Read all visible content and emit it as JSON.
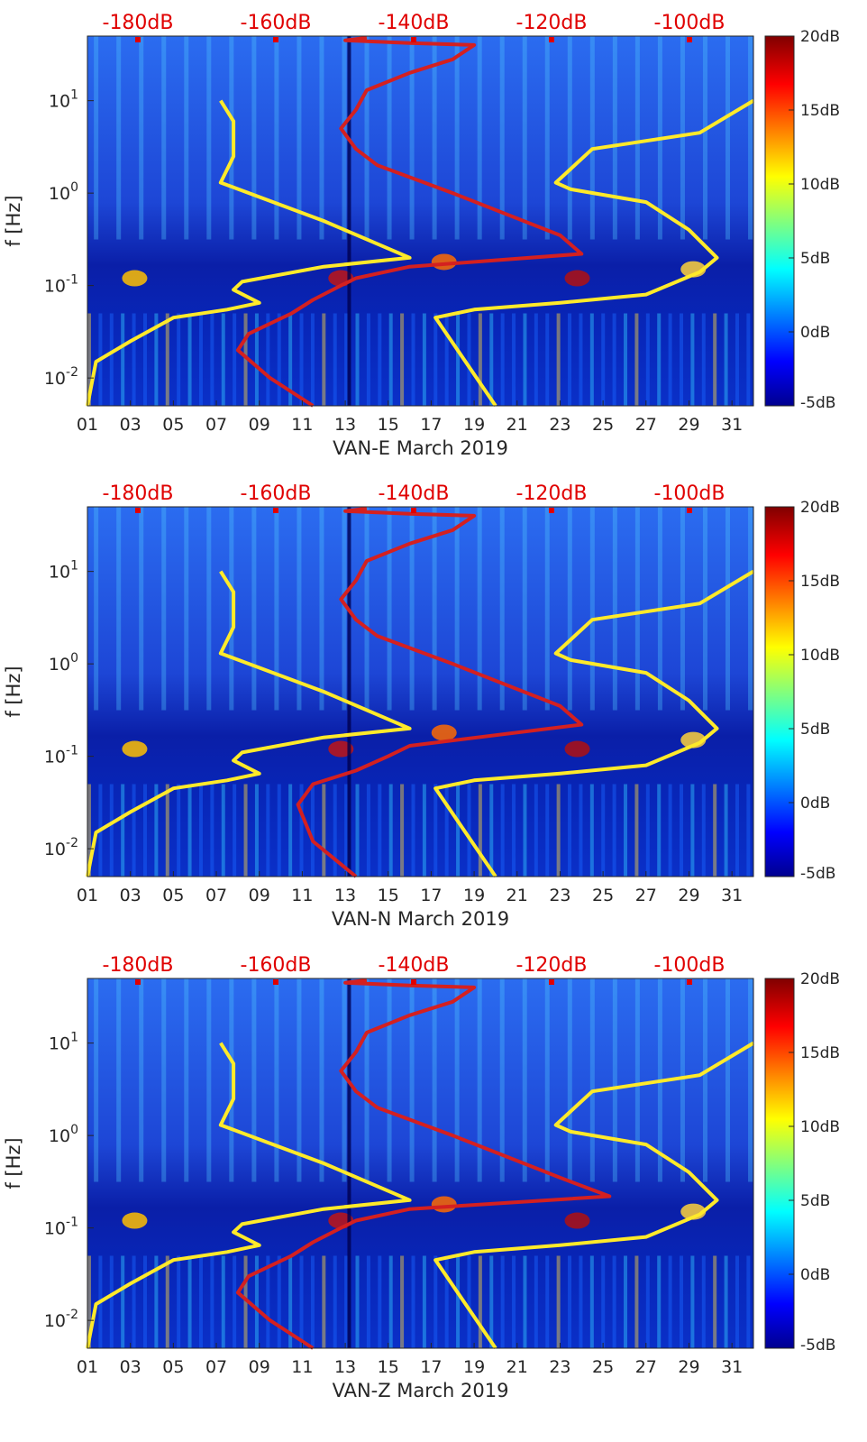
{
  "chart_data": [
    {
      "type": "heatmap",
      "title": "",
      "xlabel": "VAN-E March 2019",
      "ylabel": "f [Hz]",
      "x_ticks": [
        "01",
        "03",
        "05",
        "07",
        "09",
        "11",
        "13",
        "15",
        "17",
        "19",
        "21",
        "23",
        "25",
        "27",
        "29",
        "31"
      ],
      "y_ticks": [
        "10^-2",
        "10^-1",
        "10^0",
        "10^1"
      ],
      "xlim": [
        1,
        32
      ],
      "ylim_hz": [
        0.005,
        50
      ],
      "top_ticks": [
        "-180dB",
        "-160dB",
        "-140dB",
        "-120dB",
        "-100dB"
      ],
      "colorbar": {
        "ticks": [
          "20dB",
          "15dB",
          "10dB",
          "5dB",
          "0dB",
          "-5dB"
        ],
        "range_db": [
          -5,
          20
        ]
      },
      "series": [
        {
          "name": "yellow-curve-left",
          "color": "#ffea2a",
          "day": [
            1.0,
            1.4,
            3.0,
            5.0,
            7.5,
            9.0,
            7.8,
            8.2,
            12.0,
            16.0,
            12.0,
            7.2,
            7.8,
            7.8,
            7.2
          ],
          "hz": [
            0.005,
            0.015,
            0.025,
            0.045,
            0.055,
            0.065,
            0.09,
            0.11,
            0.16,
            0.2,
            0.5,
            1.3,
            2.5,
            6.0,
            10.0
          ]
        },
        {
          "name": "yellow-curve-right",
          "color": "#ffea2a",
          "day": [
            20.0,
            17.2,
            19.0,
            23.0,
            27.0,
            29.5,
            30.3,
            29.0,
            27.0,
            23.5,
            22.8,
            24.5,
            29.5,
            32.0
          ],
          "hz": [
            0.005,
            0.045,
            0.055,
            0.065,
            0.08,
            0.14,
            0.2,
            0.4,
            0.8,
            1.1,
            1.3,
            3.0,
            4.5,
            10.0
          ]
        },
        {
          "name": "red-noise-model",
          "color": "#d42020",
          "day": [
            11.5,
            9.5,
            8.0,
            8.5,
            10.5,
            11.5,
            12.8,
            13.5,
            16.0,
            24.0,
            23.0,
            18.0,
            14.5,
            13.5,
            12.8,
            13.5,
            14.0,
            16.0,
            18.0,
            19.0,
            16.0,
            13.0,
            14.0
          ],
          "hz": [
            0.005,
            0.01,
            0.02,
            0.03,
            0.05,
            0.07,
            0.1,
            0.12,
            0.16,
            0.22,
            0.35,
            1.0,
            2.0,
            3.0,
            5.0,
            8.0,
            13.0,
            20.0,
            28.0,
            40.0,
            42.0,
            45.0,
            48.0
          ]
        }
      ]
    },
    {
      "type": "heatmap",
      "title": "",
      "xlabel": "VAN-N March 2019",
      "ylabel": "f [Hz]",
      "x_ticks": [
        "01",
        "03",
        "05",
        "07",
        "09",
        "11",
        "13",
        "15",
        "17",
        "19",
        "21",
        "23",
        "25",
        "27",
        "29",
        "31"
      ],
      "y_ticks": [
        "10^-2",
        "10^-1",
        "10^0",
        "10^1"
      ],
      "xlim": [
        1,
        32
      ],
      "ylim_hz": [
        0.005,
        50
      ],
      "top_ticks": [
        "-180dB",
        "-160dB",
        "-140dB",
        "-120dB",
        "-100dB"
      ],
      "colorbar": {
        "ticks": [
          "20dB",
          "15dB",
          "10dB",
          "5dB",
          "0dB",
          "-5dB"
        ],
        "range_db": [
          -5,
          20
        ]
      },
      "series": [
        {
          "name": "yellow-curve-left",
          "color": "#ffea2a",
          "day": [
            1.0,
            1.4,
            3.0,
            5.0,
            7.5,
            9.0,
            7.8,
            8.2,
            12.0,
            16.0,
            12.0,
            7.2,
            7.8,
            7.8,
            7.2
          ],
          "hz": [
            0.005,
            0.015,
            0.025,
            0.045,
            0.055,
            0.065,
            0.09,
            0.11,
            0.16,
            0.2,
            0.5,
            1.3,
            2.5,
            6.0,
            10.0
          ]
        },
        {
          "name": "yellow-curve-right",
          "color": "#ffea2a",
          "day": [
            20.0,
            17.2,
            19.0,
            23.0,
            27.0,
            29.5,
            30.3,
            29.0,
            27.0,
            23.5,
            22.8,
            24.5,
            29.5,
            32.0
          ],
          "hz": [
            0.005,
            0.045,
            0.055,
            0.065,
            0.08,
            0.14,
            0.2,
            0.4,
            0.8,
            1.1,
            1.3,
            3.0,
            4.5,
            10.0
          ]
        },
        {
          "name": "red-noise-model",
          "color": "#d42020",
          "day": [
            13.5,
            11.5,
            10.8,
            11.5,
            13.5,
            15.0,
            16.0,
            24.0,
            23.0,
            18.0,
            14.5,
            13.5,
            12.8,
            13.5,
            14.0,
            16.0,
            18.0,
            19.0,
            16.0,
            13.0,
            14.0
          ],
          "hz": [
            0.005,
            0.012,
            0.03,
            0.05,
            0.07,
            0.1,
            0.13,
            0.22,
            0.35,
            1.0,
            2.0,
            3.0,
            5.0,
            8.0,
            13.0,
            20.0,
            28.0,
            40.0,
            42.0,
            45.0,
            48.0
          ]
        }
      ]
    },
    {
      "type": "heatmap",
      "title": "",
      "xlabel": "VAN-Z March 2019",
      "ylabel": "f [Hz]",
      "x_ticks": [
        "01",
        "03",
        "05",
        "07",
        "09",
        "11",
        "13",
        "15",
        "17",
        "19",
        "21",
        "23",
        "25",
        "27",
        "29",
        "31"
      ],
      "y_ticks": [
        "10^-2",
        "10^-1",
        "10^0",
        "10^1"
      ],
      "xlim": [
        1,
        32
      ],
      "ylim_hz": [
        0.005,
        50
      ],
      "top_ticks": [
        "-180dB",
        "-160dB",
        "-140dB",
        "-120dB",
        "-100dB"
      ],
      "colorbar": {
        "ticks": [
          "20dB",
          "15dB",
          "10dB",
          "5dB",
          "0dB",
          "-5dB"
        ],
        "range_db": [
          -5,
          20
        ]
      },
      "series": [
        {
          "name": "yellow-curve-left",
          "color": "#ffea2a",
          "day": [
            1.0,
            1.4,
            3.0,
            5.0,
            7.5,
            9.0,
            7.8,
            8.2,
            12.0,
            16.0,
            12.0,
            7.2,
            7.8,
            7.8,
            7.2
          ],
          "hz": [
            0.005,
            0.015,
            0.025,
            0.045,
            0.055,
            0.065,
            0.09,
            0.11,
            0.16,
            0.2,
            0.5,
            1.3,
            2.5,
            6.0,
            10.0
          ]
        },
        {
          "name": "yellow-curve-right",
          "color": "#ffea2a",
          "day": [
            20.0,
            17.2,
            19.0,
            23.0,
            27.0,
            29.5,
            30.3,
            29.0,
            27.0,
            23.5,
            22.8,
            24.5,
            29.5,
            32.0
          ],
          "hz": [
            0.005,
            0.045,
            0.055,
            0.065,
            0.08,
            0.14,
            0.2,
            0.4,
            0.8,
            1.1,
            1.3,
            3.0,
            4.5,
            10.0
          ]
        },
        {
          "name": "red-noise-model",
          "color": "#d42020",
          "day": [
            11.5,
            9.5,
            8.0,
            8.5,
            10.5,
            11.5,
            12.8,
            13.5,
            16.0,
            25.3,
            23.0,
            18.0,
            14.5,
            13.5,
            12.8,
            13.5,
            14.0,
            16.0,
            18.0,
            19.0,
            16.0,
            13.0,
            14.0
          ],
          "hz": [
            0.005,
            0.01,
            0.02,
            0.03,
            0.05,
            0.07,
            0.1,
            0.12,
            0.16,
            0.22,
            0.35,
            1.0,
            2.0,
            3.0,
            5.0,
            8.0,
            13.0,
            20.0,
            28.0,
            40.0,
            42.0,
            45.0,
            48.0
          ]
        }
      ]
    }
  ],
  "colors": {
    "jet_stops": [
      "#00008f",
      "#0000ff",
      "#00ffff",
      "#ffff00",
      "#ff0000",
      "#800000"
    ],
    "background_field": "#1a3fd8",
    "top_label": "#e00000"
  }
}
